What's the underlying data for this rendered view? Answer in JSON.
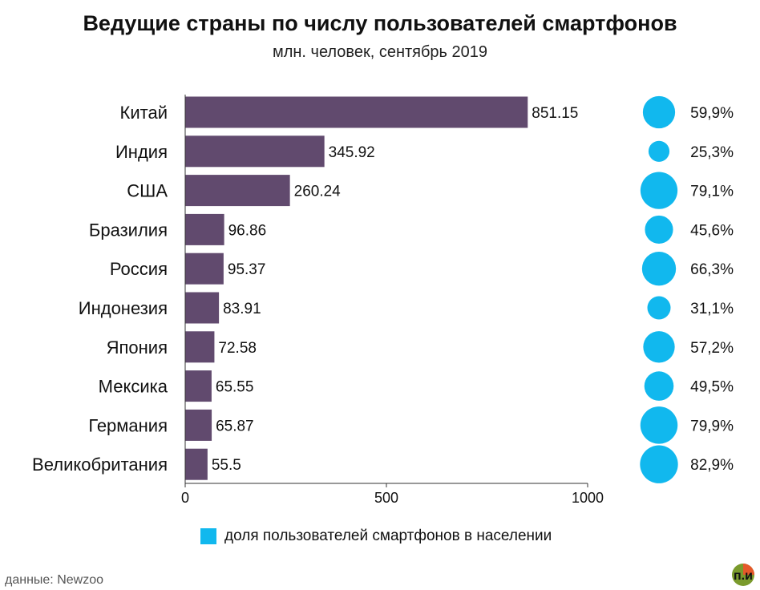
{
  "chart_data": {
    "type": "bar",
    "orientation": "horizontal",
    "title": "Ведущие страны по числу пользователей смартфонов",
    "subtitle": "млн. человек, сентябрь 2019",
    "categories": [
      "Китай",
      "Индия",
      "США",
      "Бразилия",
      "Россия",
      "Индонезия",
      "Япония",
      "Мексика",
      "Германия",
      "Великобритания"
    ],
    "values": [
      851.15,
      345.92,
      260.24,
      96.86,
      95.37,
      83.91,
      72.58,
      65.55,
      65.87,
      55.5
    ],
    "value_labels": [
      "851.15",
      "345.92",
      "260.24",
      "96.86",
      "95.37",
      "83.91",
      "72.58",
      "65.55",
      "65.87",
      "55.5"
    ],
    "share_values": [
      59.9,
      25.3,
      79.1,
      45.6,
      66.3,
      31.1,
      57.2,
      49.5,
      79.9,
      82.9
    ],
    "share_labels": [
      "59,9%",
      "25,3%",
      "79,1%",
      "45,6%",
      "66,3%",
      "31,1%",
      "57,2%",
      "49,5%",
      "79,9%",
      "82,9%"
    ],
    "xlim": [
      0,
      1000
    ],
    "xticks": [
      0,
      500,
      1000
    ],
    "xtick_labels": [
      "0",
      "500",
      "1000"
    ],
    "legend": "доля пользователей смартфонов в населении",
    "source": "данные: Newzoo",
    "logo_text": "п.и.",
    "colors": {
      "bar": "#614a6e",
      "bubble": "#11b8ee",
      "axis": "#333333"
    }
  }
}
